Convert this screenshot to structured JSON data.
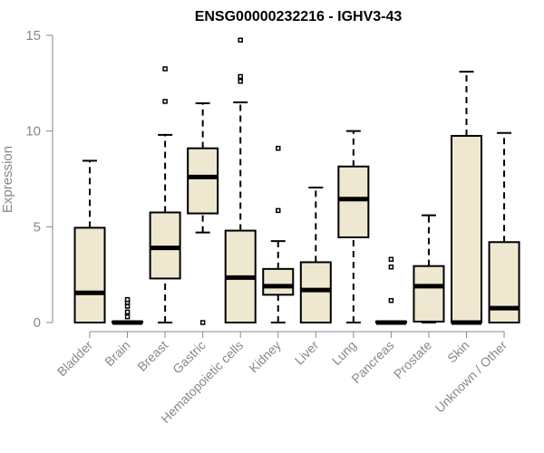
{
  "chart_data": {
    "type": "box",
    "title": "ENSG00000232216 - IGHV3-43",
    "ylabel": "Expression",
    "xlabel": "",
    "ylim": [
      0,
      15
    ],
    "yticks": [
      0,
      5,
      10,
      15
    ],
    "grid": false,
    "box_fill": "#efe8d0",
    "categories": [
      "Bladder",
      "Brain",
      "Breast",
      "Gastric",
      "Hematopoietic cells",
      "Kidney",
      "Liver",
      "Lung",
      "Pancreas",
      "Prostate",
      "Skin",
      "Unknown / Other"
    ],
    "boxes": [
      {
        "min": 0,
        "q1": 0,
        "median": 1.55,
        "q3": 4.95,
        "max": 8.45,
        "outliers": []
      },
      {
        "min": 0,
        "q1": 0,
        "median": 0,
        "q3": 0.05,
        "max": 0.05,
        "outliers": [
          0.3,
          0.55,
          0.85,
          1.05,
          1.2
        ]
      },
      {
        "min": 0,
        "q1": 2.3,
        "median": 3.9,
        "q3": 5.75,
        "max": 9.8,
        "outliers": [
          11.55,
          13.25
        ]
      },
      {
        "min": 4.7,
        "q1": 5.7,
        "median": 7.6,
        "q3": 9.1,
        "max": 11.45,
        "outliers": [
          0
        ]
      },
      {
        "min": 0,
        "q1": 0,
        "median": 2.35,
        "q3": 4.8,
        "max": 11.5,
        "outliers": [
          12.6,
          12.85,
          14.75
        ]
      },
      {
        "min": 0,
        "q1": 1.45,
        "median": 1.9,
        "q3": 2.8,
        "max": 4.25,
        "outliers": [
          5.85,
          9.1
        ]
      },
      {
        "min": 0,
        "q1": 0,
        "median": 1.7,
        "q3": 3.15,
        "max": 7.05,
        "outliers": []
      },
      {
        "min": 0,
        "q1": 4.45,
        "median": 6.45,
        "q3": 8.15,
        "max": 10.0,
        "outliers": []
      },
      {
        "min": 0,
        "q1": 0,
        "median": 0,
        "q3": 0.05,
        "max": 0.05,
        "outliers": [
          1.15,
          2.9,
          3.3
        ]
      },
      {
        "min": 0,
        "q1": 0.05,
        "median": 1.9,
        "q3": 2.95,
        "max": 5.6,
        "outliers": []
      },
      {
        "min": 0,
        "q1": 0,
        "median": 0,
        "q3": 9.75,
        "max": 13.1,
        "outliers": []
      },
      {
        "min": 0,
        "q1": 0,
        "median": 0.75,
        "q3": 4.2,
        "max": 9.9,
        "outliers": []
      }
    ]
  }
}
